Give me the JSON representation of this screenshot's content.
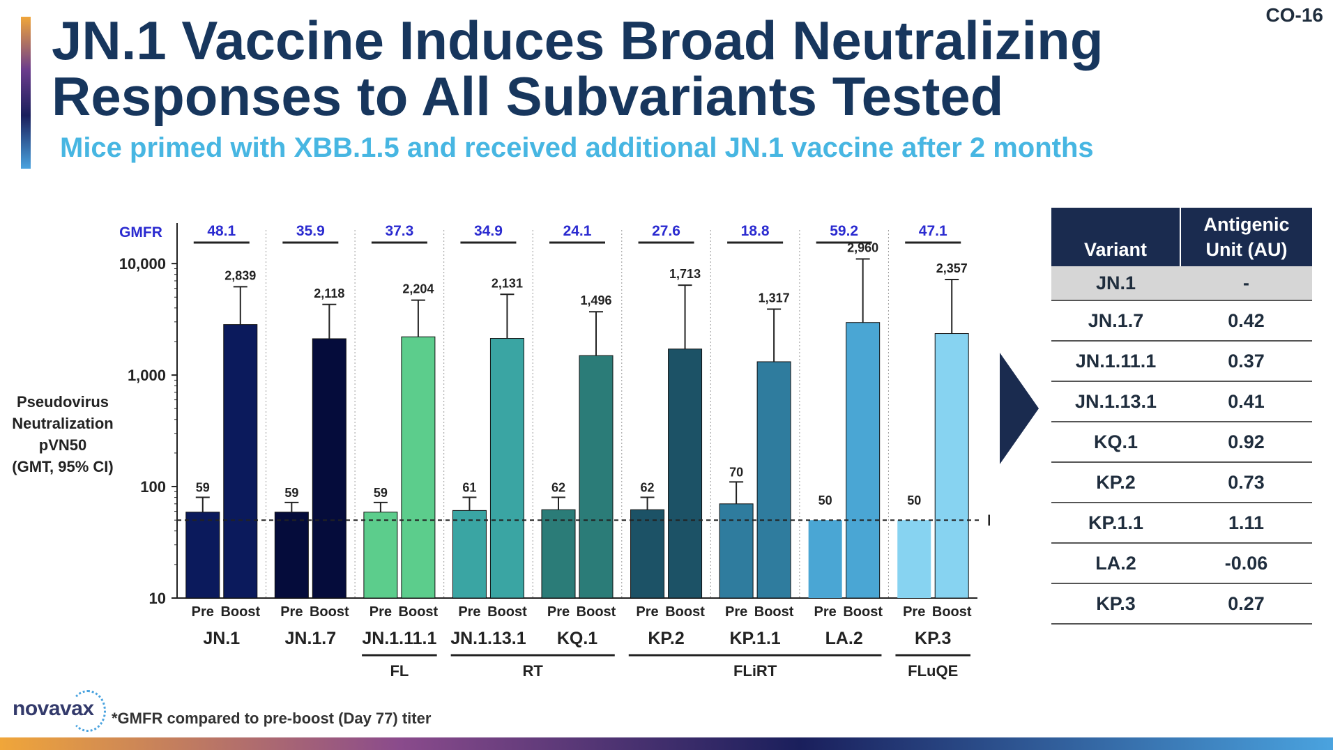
{
  "slide_id": "CO-16",
  "title_line1": "JN.1 Vaccine Induces Broad Neutralizing",
  "title_line2": "Responses to All Subvariants Tested",
  "subtitle": "Mice primed with XBB.1.5 and received additional JN.1 vaccine after 2 months",
  "chart_data": {
    "type": "bar",
    "scale": "log",
    "ylim": [
      10,
      20000
    ],
    "yticks": [
      10,
      100,
      1000,
      10000
    ],
    "ytick_labels": [
      "10",
      "100",
      "1,000",
      "10,000"
    ],
    "ylabel_lines": [
      "Pseudovirus",
      "Neutralization",
      "pVN50",
      "(GMT, 95% CI)"
    ],
    "lod_value": 50,
    "lod_label": "LOD",
    "gmfr_label": "GMFR",
    "bar_labels": [
      "Pre",
      "Boost"
    ],
    "colors": [
      "#0b1a5c",
      "#050c3b",
      "#5ccd8c",
      "#3aa5a3",
      "#2b7c78",
      "#1c5266",
      "#2f7c9e",
      "#4aa6d4",
      "#87d3f1"
    ],
    "groups": [
      {
        "variant": "JN.1",
        "pre": 59,
        "boost": 2839,
        "pre_label": "59",
        "boost_label": "2,839",
        "pre_ci": 80,
        "boost_ci": 6200,
        "gmfr": "48.1"
      },
      {
        "variant": "JN.1.7",
        "pre": 59,
        "boost": 2118,
        "pre_label": "59",
        "boost_label": "2,118",
        "pre_ci": 72,
        "boost_ci": 4300,
        "gmfr": "35.9"
      },
      {
        "variant": "JN.1.11.1",
        "pre": 59,
        "boost": 2204,
        "pre_label": "59",
        "boost_label": "2,204",
        "pre_ci": 72,
        "boost_ci": 4700,
        "gmfr": "37.3"
      },
      {
        "variant": "JN.1.13.1",
        "pre": 61,
        "boost": 2131,
        "pre_label": "61",
        "boost_label": "2,131",
        "pre_ci": 80,
        "boost_ci": 5300,
        "gmfr": "34.9"
      },
      {
        "variant": "KQ.1",
        "pre": 62,
        "boost": 1496,
        "pre_label": "62",
        "boost_label": "1,496",
        "pre_ci": 80,
        "boost_ci": 3700,
        "gmfr": "24.1"
      },
      {
        "variant": "KP.2",
        "pre": 62,
        "boost": 1713,
        "pre_label": "62",
        "boost_label": "1,713",
        "pre_ci": 80,
        "boost_ci": 6400,
        "gmfr": "27.6"
      },
      {
        "variant": "KP.1.1",
        "pre": 70,
        "boost": 1317,
        "pre_label": "70",
        "boost_label": "1,317",
        "pre_ci": 110,
        "boost_ci": 3900,
        "gmfr": "18.8"
      },
      {
        "variant": "LA.2",
        "pre": 50,
        "boost": 2960,
        "pre_label": "50",
        "boost_label": "2,960",
        "pre_ci": null,
        "boost_ci": 11000,
        "gmfr": "59.2"
      },
      {
        "variant": "KP.3",
        "pre": 50,
        "boost": 2357,
        "pre_label": "50",
        "boost_label": "2,357",
        "pre_ci": null,
        "boost_ci": 7200,
        "gmfr": "47.1"
      }
    ],
    "lineages": [
      {
        "label": "FL",
        "from": 2,
        "to": 2
      },
      {
        "label": "RT",
        "from": 3,
        "to": 4
      },
      {
        "label": "FLiRT",
        "from": 5,
        "to": 7
      },
      {
        "label": "FLuQE",
        "from": 8,
        "to": 8
      }
    ]
  },
  "table": {
    "headers": [
      "Variant",
      "Antigenic Unit (AU)"
    ],
    "rows": [
      {
        "variant": "JN.1",
        "au": "-"
      },
      {
        "variant": "JN.1.7",
        "au": "0.42"
      },
      {
        "variant": "JN.1.11.1",
        "au": "0.37"
      },
      {
        "variant": "JN.1.13.1",
        "au": "0.41"
      },
      {
        "variant": "KQ.1",
        "au": "0.92"
      },
      {
        "variant": "KP.2",
        "au": "0.73"
      },
      {
        "variant": "KP.1.1",
        "au": "1.11"
      },
      {
        "variant": "LA.2",
        "au": "-0.06"
      },
      {
        "variant": "KP.3",
        "au": "0.27"
      }
    ]
  },
  "logo_text": "novavax",
  "footnote": "*GMFR compared to pre-boost (Day 77) titer"
}
